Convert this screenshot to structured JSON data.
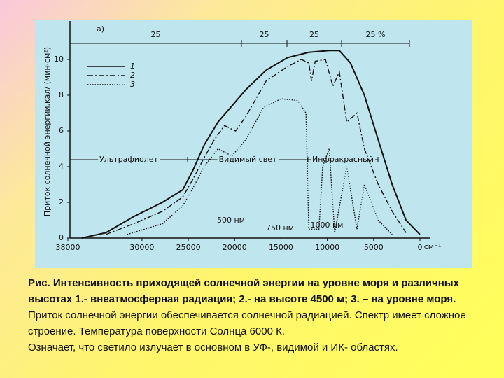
{
  "chart_data": {
    "type": "line",
    "panel_label": "а)",
    "ylabel": "Приток солнечной энергии,кал/ (мин·см²)",
    "xlabel": "см⁻¹",
    "xlim": [
      38000,
      0
    ],
    "xticks": [
      38000,
      30000,
      25000,
      20000,
      15000,
      10000,
      5000,
      0
    ],
    "ylim": [
      0,
      12
    ],
    "yticks": [
      0,
      2,
      4,
      6,
      8,
      10
    ],
    "top_annotations": [
      "25",
      "25",
      "25",
      "25 %"
    ],
    "regions": [
      "Ультрафиолет",
      "Видимый свет",
      "Инфракрасный"
    ],
    "wavelengths": [
      "500 нм",
      "750 нм",
      "1000 нм"
    ],
    "series": [
      {
        "name": "1",
        "color": "#111111",
        "dash": "solid",
        "x": [
          36500,
          33900,
          30900,
          27800,
          25600,
          24500,
          23300,
          21800,
          20300,
          18800,
          16600,
          14300,
          12000,
          9800,
          8700,
          7500,
          6000,
          4500,
          3000,
          1500,
          0
        ],
        "values": [
          0,
          0.3,
          1.2,
          2.0,
          2.7,
          3.8,
          5.2,
          6.5,
          7.4,
          8.3,
          9.4,
          10.1,
          10.4,
          10.5,
          10.5,
          9.8,
          8.0,
          5.5,
          3.0,
          1.0,
          0.2
        ]
      },
      {
        "name": "2",
        "color": "#111111",
        "dash": "dashdot",
        "x": [
          33900,
          30900,
          27800,
          25600,
          24500,
          23300,
          22200,
          21100,
          19900,
          18800,
          16600,
          14300,
          12800,
          12000,
          11700,
          11300,
          10200,
          9400,
          8700,
          7900,
          6800,
          6000,
          4500,
          3000,
          1500
        ],
        "values": [
          0.2,
          0.8,
          1.5,
          2.3,
          3.3,
          4.5,
          5.5,
          6.3,
          6.0,
          6.8,
          8.8,
          9.6,
          10.0,
          9.8,
          8.8,
          9.9,
          10.0,
          8.5,
          9.3,
          6.5,
          7.0,
          5.0,
          3.0,
          1.5,
          0.3
        ]
      },
      {
        "name": "3",
        "color": "#111111",
        "dash": "dotted",
        "x": [
          31600,
          27800,
          25600,
          24500,
          23300,
          21800,
          20300,
          18800,
          16900,
          15000,
          13200,
          12300,
          12000,
          10900,
          10500,
          9800,
          9200,
          7900,
          6800,
          6000,
          4500,
          3000
        ],
        "values": [
          0.2,
          0.8,
          1.8,
          2.8,
          4.0,
          5.0,
          4.6,
          5.5,
          7.3,
          7.8,
          7.7,
          7.0,
          0.5,
          0.5,
          4.0,
          5.0,
          0.3,
          4.0,
          0.5,
          3.0,
          1.0,
          0.2
        ]
      }
    ]
  },
  "caption": {
    "bold": "Рис. Интенсивность приходящей солнечной энергии на уровне моря и различных высотах 1.- внеатмосферная радиация; 2.-  на высоте 4500 м; 3. – на уровне моря.",
    "lines": [
      "Приток солнечной энергии обеспечивается солнечной радиацией. Спектр имеет сложное строение. Температура поверхности Солнца 6000 К.",
      "Означает, что светило излучает в основном в УФ-, видимой и ИК- областях."
    ]
  }
}
